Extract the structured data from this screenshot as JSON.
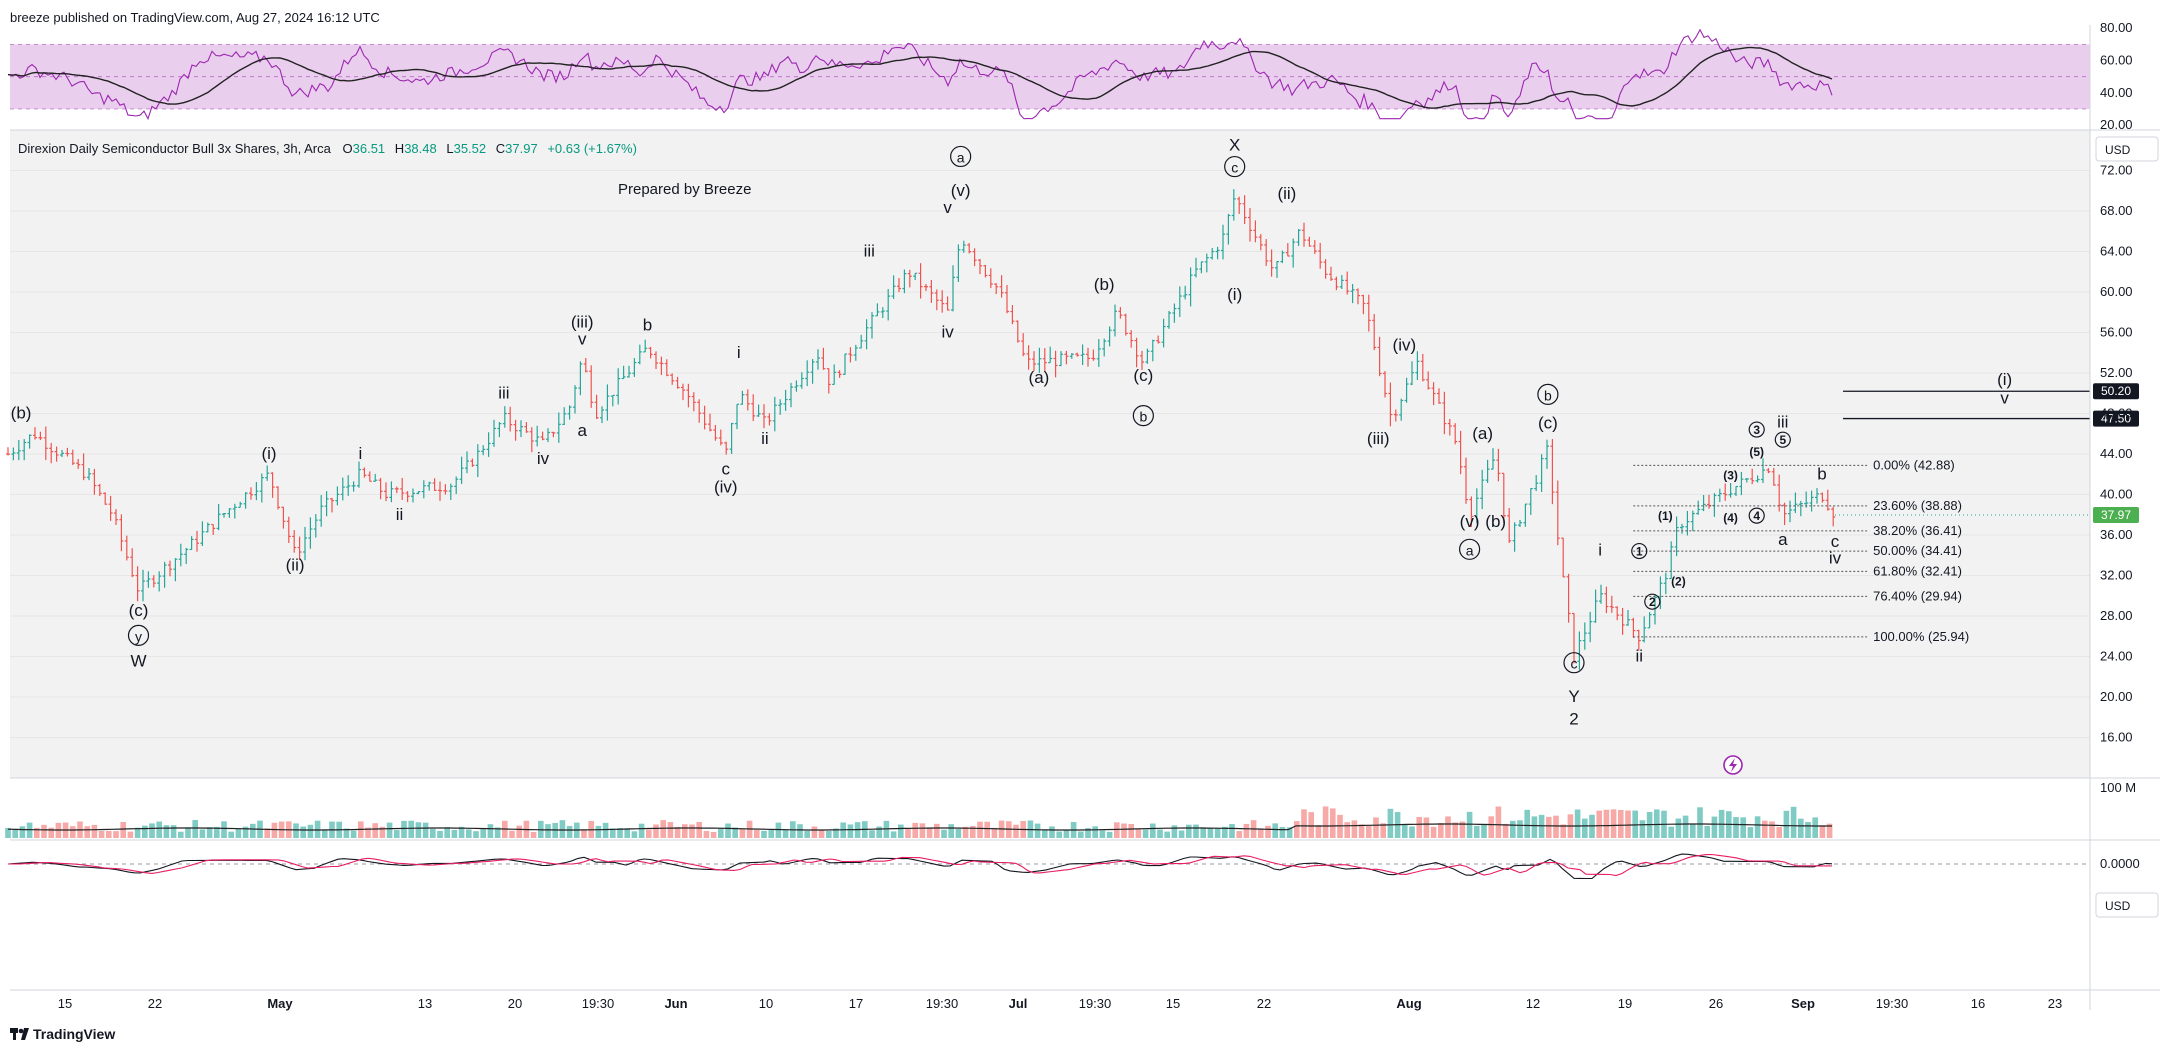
{
  "header": {
    "publisher": "breeze published on TradingView.com, Aug 27, 2024 16:12 UTC"
  },
  "symbol_line": {
    "name": "Direxion Daily Semiconductor Bull 3x Shares, 3h, Arca",
    "o_label": "O",
    "o": "36.51",
    "h_label": "H",
    "h": "38.48",
    "l_label": "L",
    "l": "35.52",
    "c_label": "C",
    "c": "37.97",
    "change": "+0.63 (+1.67%)"
  },
  "watermark": "Prepared by Breeze",
  "footer": {
    "brand": "TradingView"
  },
  "colors": {
    "up": "#26a69a",
    "down": "#ef5350",
    "rsi": "#9c27b0",
    "rsi_band": "#e1bee7",
    "last_price_bg": "#4caf50",
    "level_bg": "#131722"
  },
  "chart_data": {
    "type": "candlestick",
    "main_pane": {
      "y_axis": {
        "ticks": [
          "72.00",
          "68.00",
          "64.00",
          "60.00",
          "56.00",
          "52.00",
          "48.00",
          "44.00",
          "40.00",
          "36.00",
          "32.00",
          "28.00",
          "24.00",
          "20.00",
          "16.00"
        ],
        "currency": "USD",
        "ylim": [
          12,
          76
        ]
      },
      "x_axis": {
        "ticks": [
          "15",
          "22",
          "May",
          "13",
          "20",
          "19:30",
          "Jun",
          "10",
          "17",
          "19:30",
          "Jul",
          "19:30",
          "15",
          "22",
          "Aug",
          "12",
          "19",
          "26",
          "Sep",
          "19:30",
          "16",
          "23"
        ]
      },
      "last_price": "37.97",
      "price_levels": [
        {
          "value": 50.2,
          "label": "50.20"
        },
        {
          "value": 47.5,
          "label": "47.50"
        }
      ],
      "path_points": [
        {
          "date": "2024-04-09",
          "price": 44
        },
        {
          "date": "2024-04-11",
          "price": 46
        },
        {
          "date": "2024-04-15",
          "price": 42
        },
        {
          "date": "2024-04-17",
          "price": 38
        },
        {
          "date": "2024-04-19",
          "price": 30.5
        },
        {
          "date": "2024-04-23",
          "price": 35
        },
        {
          "date": "2024-04-25",
          "price": 37.5
        },
        {
          "date": "2024-04-29",
          "price": 42
        },
        {
          "date": "2024-05-01",
          "price": 34
        },
        {
          "date": "2024-05-03",
          "price": 38.5
        },
        {
          "date": "2024-05-06",
          "price": 42
        },
        {
          "date": "2024-05-08",
          "price": 40
        },
        {
          "date": "2024-05-13",
          "price": 41
        },
        {
          "date": "2024-05-15",
          "price": 44
        },
        {
          "date": "2024-05-17",
          "price": 47.5
        },
        {
          "date": "2024-05-20",
          "price": 45
        },
        {
          "date": "2024-05-22",
          "price": 48.5
        },
        {
          "date": "2024-05-23",
          "price": 53.5
        },
        {
          "date": "2024-05-24",
          "price": 48
        },
        {
          "date": "2024-05-28",
          "price": 54.5
        },
        {
          "date": "2024-05-31",
          "price": 50
        },
        {
          "date": "2024-06-03",
          "price": 44
        },
        {
          "date": "2024-06-04",
          "price": 50
        },
        {
          "date": "2024-06-06",
          "price": 47
        },
        {
          "date": "2024-06-10",
          "price": 54
        },
        {
          "date": "2024-06-11",
          "price": 51
        },
        {
          "date": "2024-06-13",
          "price": 55
        },
        {
          "date": "2024-06-17",
          "price": 62
        },
        {
          "date": "2024-06-20",
          "price": 58
        },
        {
          "date": "2024-06-21",
          "price": 65.5
        },
        {
          "date": "2024-06-24",
          "price": 60
        },
        {
          "date": "2024-06-26",
          "price": 53
        },
        {
          "date": "2024-07-01",
          "price": 53.5
        },
        {
          "date": "2024-07-03",
          "price": 58
        },
        {
          "date": "2024-07-05",
          "price": 53
        },
        {
          "date": "2024-07-09",
          "price": 62
        },
        {
          "date": "2024-07-11",
          "price": 65
        },
        {
          "date": "2024-07-12",
          "price": 69.5
        },
        {
          "date": "2024-07-15",
          "price": 62
        },
        {
          "date": "2024-07-17",
          "price": 66
        },
        {
          "date": "2024-07-19",
          "price": 62
        },
        {
          "date": "2024-07-22",
          "price": 58.5
        },
        {
          "date": "2024-07-24",
          "price": 47.5
        },
        {
          "date": "2024-07-26",
          "price": 53
        },
        {
          "date": "2024-07-29",
          "price": 45
        },
        {
          "date": "2024-07-30",
          "price": 38
        },
        {
          "date": "2024-08-01",
          "price": 44
        },
        {
          "date": "2024-08-02",
          "price": 35
        },
        {
          "date": "2024-08-05",
          "price": 44.5
        },
        {
          "date": "2024-08-06",
          "price": 33
        },
        {
          "date": "2024-08-07",
          "price": 24
        },
        {
          "date": "2024-08-09",
          "price": 30
        },
        {
          "date": "2024-08-12",
          "price": 26
        },
        {
          "date": "2024-08-14",
          "price": 32
        },
        {
          "date": "2024-08-15",
          "price": 37
        },
        {
          "date": "2024-08-19",
          "price": 40.5
        },
        {
          "date": "2024-08-21",
          "price": 42
        },
        {
          "date": "2024-08-22",
          "price": 42.8
        },
        {
          "date": "2024-08-23",
          "price": 38
        },
        {
          "date": "2024-08-26",
          "price": 40
        },
        {
          "date": "2024-08-27",
          "price": 37.97
        }
      ],
      "fib_levels": [
        {
          "label": "0.00% (42.88)",
          "value": 42.88
        },
        {
          "label": "23.60% (38.88)",
          "value": 38.88
        },
        {
          "label": "38.20% (36.41)",
          "value": 36.41
        },
        {
          "label": "50.00% (34.41)",
          "value": 34.41
        },
        {
          "label": "61.80% (32.41)",
          "value": 32.41
        },
        {
          "label": "76.40% (29.94)",
          "value": 29.94
        },
        {
          "label": "100.00% (25.94)",
          "value": 25.94
        }
      ],
      "fib_range": {
        "from": "2024-08-12",
        "to": "2024-08-29"
      },
      "wave_labels": [
        {
          "t": "(b)",
          "date": "2024-04-10",
          "price": 47.5
        },
        {
          "t": "(c)",
          "date": "2024-04-19",
          "price": 28
        },
        {
          "t": "y",
          "date": "2024-04-19",
          "price": 25.5,
          "circle": true
        },
        {
          "t": "W",
          "date": "2024-04-19",
          "price": 23
        },
        {
          "t": "(i)",
          "date": "2024-04-29",
          "price": 43.5
        },
        {
          "t": "(ii)",
          "date": "2024-05-01",
          "price": 32.5
        },
        {
          "t": "i",
          "date": "2024-05-06",
          "price": 43.5
        },
        {
          "t": "ii",
          "date": "2024-05-09",
          "price": 37.5
        },
        {
          "t": "iii",
          "date": "2024-05-17",
          "price": 49.5
        },
        {
          "t": "iv",
          "date": "2024-05-20",
          "price": 43
        },
        {
          "t": "(iii)",
          "date": "2024-05-23",
          "price": 56.5
        },
        {
          "t": "v",
          "date": "2024-05-23",
          "price": 54.8
        },
        {
          "t": "a",
          "date": "2024-05-23",
          "price": 45.8
        },
        {
          "t": "b",
          "date": "2024-05-28",
          "price": 56.2
        },
        {
          "t": "c",
          "date": "2024-06-03",
          "price": 42
        },
        {
          "t": "(iv)",
          "date": "2024-06-03",
          "price": 40.2
        },
        {
          "t": "i",
          "date": "2024-06-04",
          "price": 53.5
        },
        {
          "t": "ii",
          "date": "2024-06-06",
          "price": 45
        },
        {
          "t": "iii",
          "date": "2024-06-14",
          "price": 63.5
        },
        {
          "t": "iv",
          "date": "2024-06-20",
          "price": 55.5
        },
        {
          "t": "a",
          "date": "2024-06-21",
          "price": 72.8,
          "circle": true
        },
        {
          "t": "(v)",
          "date": "2024-06-21",
          "price": 69.5
        },
        {
          "t": "v",
          "date": "2024-06-20",
          "price": 67.8
        },
        {
          "t": "(a)",
          "date": "2024-06-27",
          "price": 51
        },
        {
          "t": "(b)",
          "date": "2024-07-02",
          "price": 60.2
        },
        {
          "t": "(c)",
          "date": "2024-07-05",
          "price": 51.2
        },
        {
          "t": "b",
          "date": "2024-07-05",
          "price": 47.2,
          "circle": true
        },
        {
          "t": "X",
          "date": "2024-07-12",
          "price": 74
        },
        {
          "t": "c",
          "date": "2024-07-12",
          "price": 71.8,
          "circle": true
        },
        {
          "t": "(i)",
          "date": "2024-07-12",
          "price": 59.2
        },
        {
          "t": "(ii)",
          "date": "2024-07-16",
          "price": 69.2
        },
        {
          "t": "(iv)",
          "date": "2024-07-25",
          "price": 54.2
        },
        {
          "t": "(iii)",
          "date": "2024-07-23",
          "price": 45
        },
        {
          "t": "(a)",
          "date": "2024-07-31",
          "price": 45.5
        },
        {
          "t": "(v)",
          "date": "2024-07-30",
          "price": 36.8
        },
        {
          "t": "a",
          "date": "2024-07-30",
          "price": 34,
          "circle": true
        },
        {
          "t": "(b)",
          "date": "2024-08-01",
          "price": 36.8
        },
        {
          "t": "b",
          "date": "2024-08-05",
          "price": 49.3,
          "circle": true
        },
        {
          "t": "(c)",
          "date": "2024-08-05",
          "price": 46.5
        },
        {
          "t": "c",
          "date": "2024-08-07",
          "price": 22.8,
          "circle": true
        },
        {
          "t": "Y",
          "date": "2024-08-07",
          "price": 19.5
        },
        {
          "t": "2",
          "date": "2024-08-07",
          "price": 17.3
        },
        {
          "t": "i",
          "date": "2024-08-09",
          "price": 34
        },
        {
          "t": "ii",
          "date": "2024-08-12",
          "price": 23.5
        },
        {
          "t": "1",
          "date": "2024-08-12",
          "price": 34,
          "circle": true,
          "small": true
        },
        {
          "t": "2",
          "date": "2024-08-13",
          "price": 29,
          "circle": true,
          "small": true
        },
        {
          "t": "(1)",
          "date": "2024-08-14",
          "price": 37.5,
          "small": true
        },
        {
          "t": "(2)",
          "date": "2024-08-15",
          "price": 31,
          "small": true
        },
        {
          "t": "(3)",
          "date": "2024-08-19",
          "price": 41.5,
          "small": true
        },
        {
          "t": "(4)",
          "date": "2024-08-19",
          "price": 37.3,
          "small": true
        },
        {
          "t": "3",
          "date": "2024-08-21",
          "price": 46,
          "circle": true,
          "small": true
        },
        {
          "t": "(5)",
          "date": "2024-08-21",
          "price": 43.8,
          "small": true
        },
        {
          "t": "4",
          "date": "2024-08-21",
          "price": 37.5,
          "circle": true,
          "small": true
        },
        {
          "t": "iii",
          "date": "2024-08-23",
          "price": 46.6
        },
        {
          "t": "5",
          "date": "2024-08-23",
          "price": 45,
          "circle": true,
          "small": true
        },
        {
          "t": "b",
          "date": "2024-08-26",
          "price": 41.5
        },
        {
          "t": "a",
          "date": "2024-08-23",
          "price": 35
        },
        {
          "t": "c",
          "date": "2024-08-27",
          "price": 34.8
        },
        {
          "t": "iv",
          "date": "2024-08-27",
          "price": 33.2
        },
        {
          "t": "(i)",
          "date": "2024-09-09",
          "price": 50.8
        },
        {
          "t": "v",
          "date": "2024-09-09",
          "price": 49
        }
      ]
    },
    "rsi_pane": {
      "y_axis": {
        "ticks": [
          "80.00",
          "60.00",
          "40.00",
          "20.00"
        ],
        "ylim": [
          17,
          82
        ]
      },
      "band": [
        30,
        70
      ]
    },
    "volume_pane": {
      "scale_label": "100 M"
    },
    "osc_pane": {
      "zero_label": "0.0000",
      "currency": "USD"
    }
  }
}
